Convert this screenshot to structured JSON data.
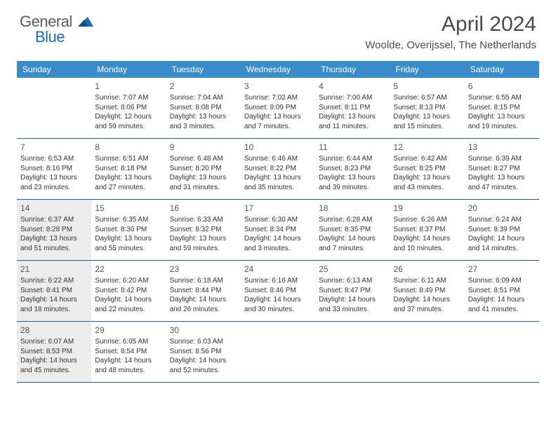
{
  "logo": {
    "text1": "General",
    "text2": "Blue",
    "icon_color": "#1f6bb0"
  },
  "header": {
    "month_title": "April 2024",
    "location": "Woolde, Overijssel, The Netherlands"
  },
  "colors": {
    "header_bar": "#3a8bc9",
    "header_text": "#ffffff",
    "week_divider": "#2a5a82",
    "shaded_bg": "#ececec",
    "body_text": "#333333",
    "title_text": "#4a4a4a"
  },
  "days_of_week": [
    "Sunday",
    "Monday",
    "Tuesday",
    "Wednesday",
    "Thursday",
    "Friday",
    "Saturday"
  ],
  "weeks": [
    [
      {
        "n": "",
        "sr": "",
        "ss": "",
        "dl": ""
      },
      {
        "n": "1",
        "sr": "Sunrise: 7:07 AM",
        "ss": "Sunset: 8:06 PM",
        "dl": "Daylight: 12 hours and 59 minutes."
      },
      {
        "n": "2",
        "sr": "Sunrise: 7:04 AM",
        "ss": "Sunset: 8:08 PM",
        "dl": "Daylight: 13 hours and 3 minutes."
      },
      {
        "n": "3",
        "sr": "Sunrise: 7:02 AM",
        "ss": "Sunset: 8:09 PM",
        "dl": "Daylight: 13 hours and 7 minutes."
      },
      {
        "n": "4",
        "sr": "Sunrise: 7:00 AM",
        "ss": "Sunset: 8:11 PM",
        "dl": "Daylight: 13 hours and 11 minutes."
      },
      {
        "n": "5",
        "sr": "Sunrise: 6:57 AM",
        "ss": "Sunset: 8:13 PM",
        "dl": "Daylight: 13 hours and 15 minutes."
      },
      {
        "n": "6",
        "sr": "Sunrise: 6:55 AM",
        "ss": "Sunset: 8:15 PM",
        "dl": "Daylight: 13 hours and 19 minutes."
      }
    ],
    [
      {
        "n": "7",
        "sr": "Sunrise: 6:53 AM",
        "ss": "Sunset: 8:16 PM",
        "dl": "Daylight: 13 hours and 23 minutes."
      },
      {
        "n": "8",
        "sr": "Sunrise: 6:51 AM",
        "ss": "Sunset: 8:18 PM",
        "dl": "Daylight: 13 hours and 27 minutes."
      },
      {
        "n": "9",
        "sr": "Sunrise: 6:48 AM",
        "ss": "Sunset: 8:20 PM",
        "dl": "Daylight: 13 hours and 31 minutes."
      },
      {
        "n": "10",
        "sr": "Sunrise: 6:46 AM",
        "ss": "Sunset: 8:22 PM",
        "dl": "Daylight: 13 hours and 35 minutes."
      },
      {
        "n": "11",
        "sr": "Sunrise: 6:44 AM",
        "ss": "Sunset: 8:23 PM",
        "dl": "Daylight: 13 hours and 39 minutes."
      },
      {
        "n": "12",
        "sr": "Sunrise: 6:42 AM",
        "ss": "Sunset: 8:25 PM",
        "dl": "Daylight: 13 hours and 43 minutes."
      },
      {
        "n": "13",
        "sr": "Sunrise: 6:39 AM",
        "ss": "Sunset: 8:27 PM",
        "dl": "Daylight: 13 hours and 47 minutes."
      }
    ],
    [
      {
        "n": "14",
        "sr": "Sunrise: 6:37 AM",
        "ss": "Sunset: 8:28 PM",
        "dl": "Daylight: 13 hours and 51 minutes.",
        "shaded": true
      },
      {
        "n": "15",
        "sr": "Sunrise: 6:35 AM",
        "ss": "Sunset: 8:30 PM",
        "dl": "Daylight: 13 hours and 55 minutes."
      },
      {
        "n": "16",
        "sr": "Sunrise: 6:33 AM",
        "ss": "Sunset: 8:32 PM",
        "dl": "Daylight: 13 hours and 59 minutes."
      },
      {
        "n": "17",
        "sr": "Sunrise: 6:30 AM",
        "ss": "Sunset: 8:34 PM",
        "dl": "Daylight: 14 hours and 3 minutes."
      },
      {
        "n": "18",
        "sr": "Sunrise: 6:28 AM",
        "ss": "Sunset: 8:35 PM",
        "dl": "Daylight: 14 hours and 7 minutes."
      },
      {
        "n": "19",
        "sr": "Sunrise: 6:26 AM",
        "ss": "Sunset: 8:37 PM",
        "dl": "Daylight: 14 hours and 10 minutes."
      },
      {
        "n": "20",
        "sr": "Sunrise: 6:24 AM",
        "ss": "Sunset: 8:39 PM",
        "dl": "Daylight: 14 hours and 14 minutes."
      }
    ],
    [
      {
        "n": "21",
        "sr": "Sunrise: 6:22 AM",
        "ss": "Sunset: 8:41 PM",
        "dl": "Daylight: 14 hours and 18 minutes.",
        "shaded": true
      },
      {
        "n": "22",
        "sr": "Sunrise: 6:20 AM",
        "ss": "Sunset: 8:42 PM",
        "dl": "Daylight: 14 hours and 22 minutes."
      },
      {
        "n": "23",
        "sr": "Sunrise: 6:18 AM",
        "ss": "Sunset: 8:44 PM",
        "dl": "Daylight: 14 hours and 26 minutes."
      },
      {
        "n": "24",
        "sr": "Sunrise: 6:16 AM",
        "ss": "Sunset: 8:46 PM",
        "dl": "Daylight: 14 hours and 30 minutes."
      },
      {
        "n": "25",
        "sr": "Sunrise: 6:13 AM",
        "ss": "Sunset: 8:47 PM",
        "dl": "Daylight: 14 hours and 33 minutes."
      },
      {
        "n": "26",
        "sr": "Sunrise: 6:11 AM",
        "ss": "Sunset: 8:49 PM",
        "dl": "Daylight: 14 hours and 37 minutes."
      },
      {
        "n": "27",
        "sr": "Sunrise: 6:09 AM",
        "ss": "Sunset: 8:51 PM",
        "dl": "Daylight: 14 hours and 41 minutes."
      }
    ],
    [
      {
        "n": "28",
        "sr": "Sunrise: 6:07 AM",
        "ss": "Sunset: 8:53 PM",
        "dl": "Daylight: 14 hours and 45 minutes.",
        "shaded": true
      },
      {
        "n": "29",
        "sr": "Sunrise: 6:05 AM",
        "ss": "Sunset: 8:54 PM",
        "dl": "Daylight: 14 hours and 48 minutes."
      },
      {
        "n": "30",
        "sr": "Sunrise: 6:03 AM",
        "ss": "Sunset: 8:56 PM",
        "dl": "Daylight: 14 hours and 52 minutes."
      },
      {
        "n": "",
        "sr": "",
        "ss": "",
        "dl": ""
      },
      {
        "n": "",
        "sr": "",
        "ss": "",
        "dl": ""
      },
      {
        "n": "",
        "sr": "",
        "ss": "",
        "dl": ""
      },
      {
        "n": "",
        "sr": "",
        "ss": "",
        "dl": ""
      }
    ]
  ]
}
